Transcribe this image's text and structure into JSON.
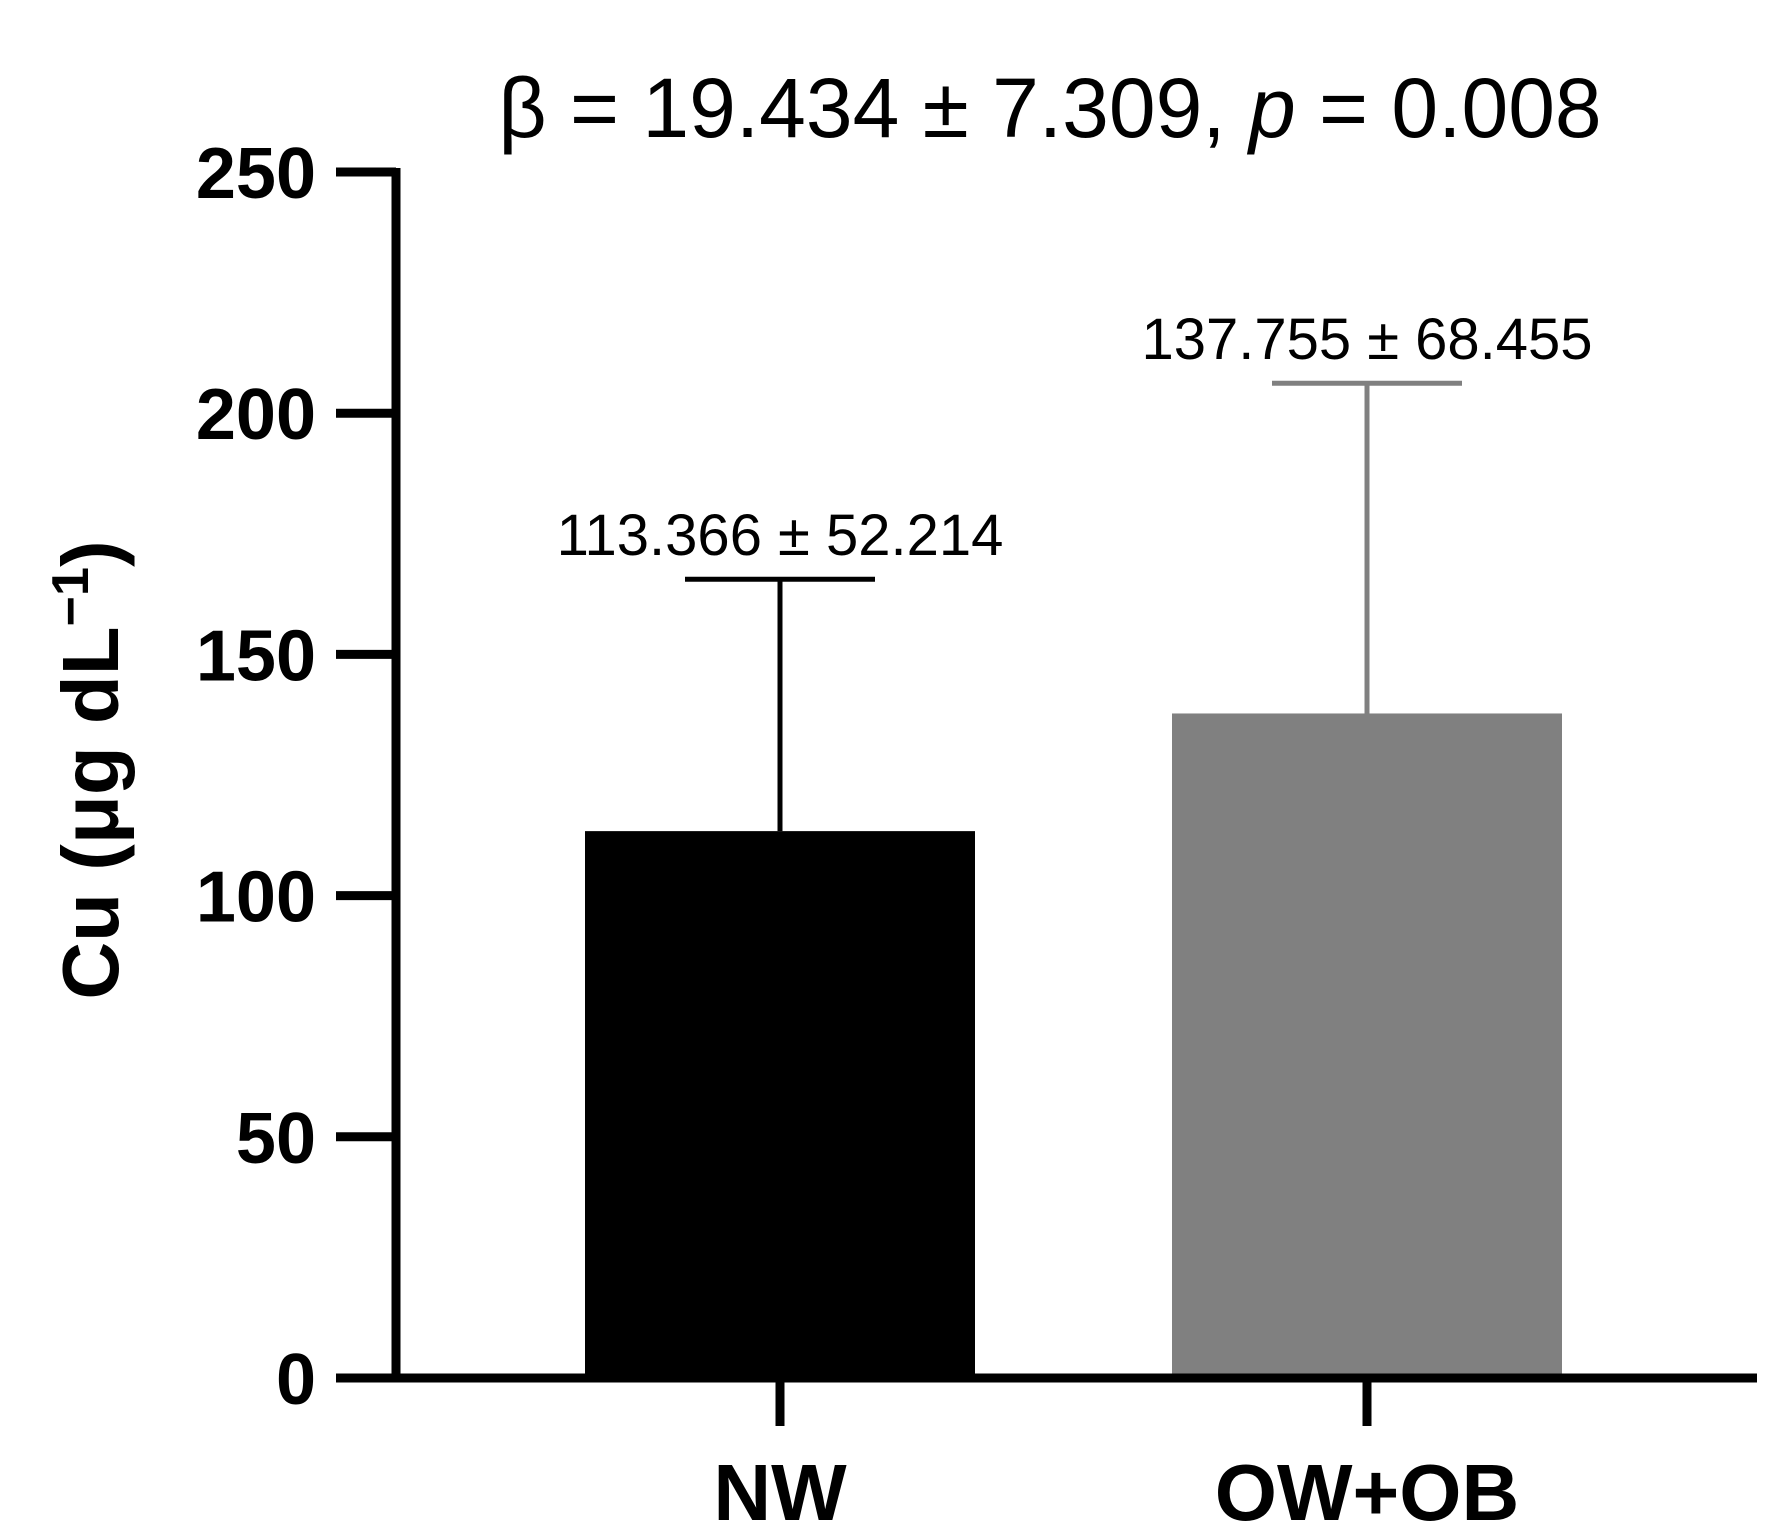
{
  "chart_data": {
    "type": "bar",
    "annotation_title": {
      "prefix": "β = 19.434 ± 7.309, ",
      "italic": "p",
      "suffix": " = 0.008"
    },
    "ylabel": {
      "main": "Cu (μg dL",
      "superscript": "−1",
      "close": ")"
    },
    "xlabel": "",
    "categories": [
      "NW",
      "OW+OB"
    ],
    "values": [
      113.366,
      137.755
    ],
    "errors": [
      52.214,
      68.455
    ],
    "data_labels": [
      "113.366 ± 52.214",
      "137.755 ± 68.455"
    ],
    "colors": [
      "#000000",
      "#808080"
    ],
    "error_colors": [
      "#000000",
      "#808080"
    ],
    "ylim": [
      0,
      250
    ],
    "yticks": [
      0,
      50,
      100,
      150,
      200,
      250
    ],
    "ytick_labels": [
      "0",
      "50",
      "100",
      "150",
      "200",
      "250"
    ],
    "grid": false,
    "legend": "none"
  }
}
